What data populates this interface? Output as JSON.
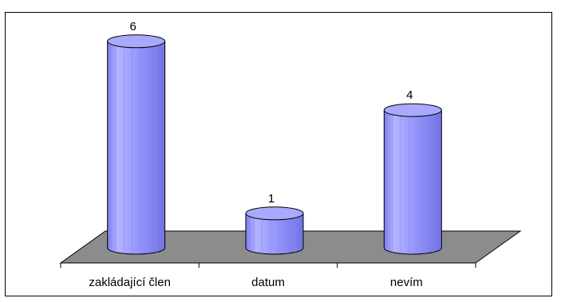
{
  "chart_data": {
    "type": "bar",
    "style": "3d-cylinder",
    "categories": [
      "zakládající člen",
      "datum",
      "nevím"
    ],
    "values": [
      6,
      1,
      4
    ],
    "data_labels": [
      "6",
      "1",
      "4"
    ],
    "ylim": [
      0,
      6
    ],
    "grid": false,
    "legend": "none",
    "colors": {
      "bar_body": "#9999ff",
      "bar_top": "#a9a9ff",
      "floor": "#8c8c8c",
      "outline": "#000000"
    }
  }
}
